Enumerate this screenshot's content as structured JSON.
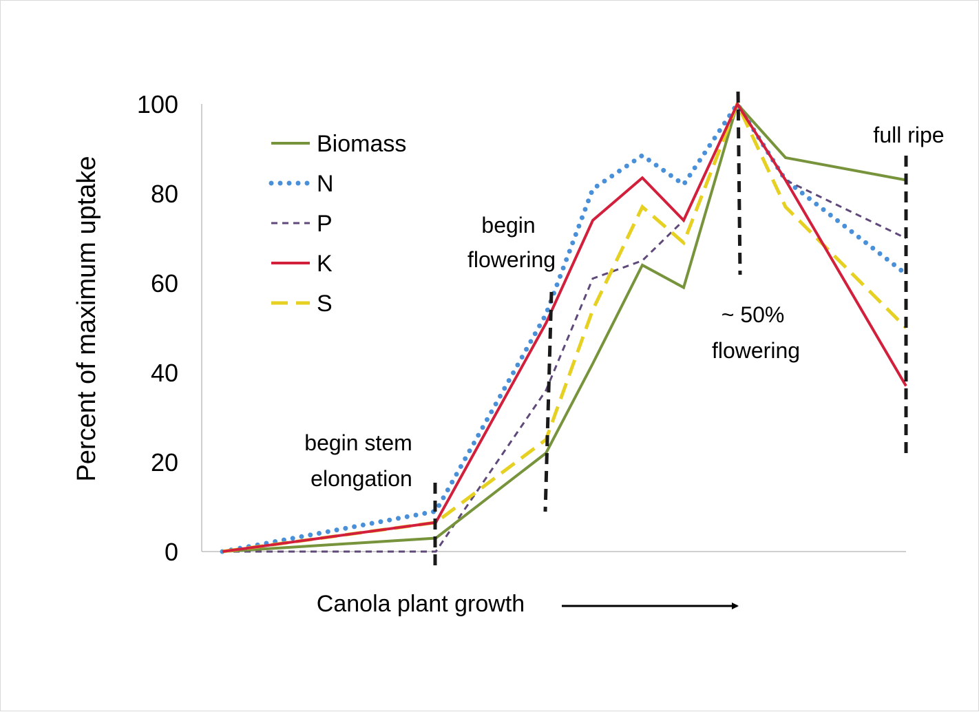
{
  "chart_data": {
    "type": "line",
    "title": "",
    "xlabel": "Canola plant growth",
    "ylabel": "Percent of maximum uptake",
    "ylim": [
      0,
      100
    ],
    "yticks": [
      "0",
      "20",
      "40",
      "60",
      "80",
      "100"
    ],
    "x": [
      0,
      1,
      2,
      3,
      4,
      5,
      6,
      7,
      8,
      9
    ],
    "series": [
      {
        "name": "Biomass",
        "color": "#77933C",
        "dash": "solid",
        "values": [
          0,
          3,
          22,
          42,
          64,
          59,
          100,
          88,
          null,
          83
        ]
      },
      {
        "name": "N",
        "color": "#4A90D9",
        "dash": "dotted",
        "values": [
          0,
          9,
          53,
          81,
          88.5,
          82,
          100,
          83,
          null,
          62
        ]
      },
      {
        "name": "P",
        "color": "#5F497A",
        "dash": "dashed",
        "values": [
          0,
          0,
          36,
          61,
          65,
          74,
          100,
          83,
          null,
          70
        ]
      },
      {
        "name": "K",
        "color": "#D2203C",
        "dash": "solid",
        "values": [
          0,
          6.5,
          51,
          74,
          83.5,
          74,
          100,
          83,
          null,
          37
        ]
      },
      {
        "name": "S",
        "color": "#E6D022",
        "dash": "long-dashed",
        "values": [
          0,
          6.5,
          25,
          54,
          77,
          69,
          100,
          77,
          null,
          50
        ]
      }
    ],
    "legend_position": "top-left",
    "stage_markers": [
      {
        "label_lines": [
          "begin stem",
          "elongation"
        ],
        "x": 1.0
      },
      {
        "label_lines": [
          "begin",
          "flowering"
        ],
        "x": 2.0
      },
      {
        "label_lines": [
          "~ 50%",
          "flowering"
        ],
        "x": 6.0
      },
      {
        "label_lines": [
          "full ripe"
        ],
        "x": 9.0
      }
    ]
  }
}
